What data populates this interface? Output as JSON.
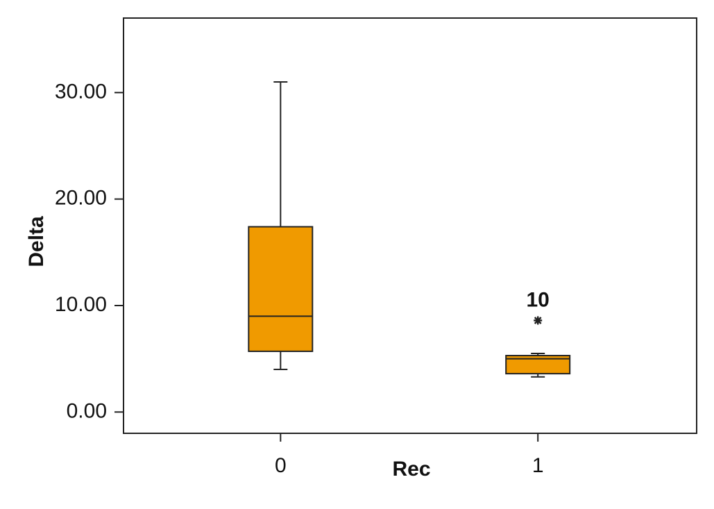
{
  "chart_data": {
    "type": "box",
    "x_label": "Rec",
    "y_label": "Delta",
    "categories": [
      "0",
      "1"
    ],
    "color": "#f09a00",
    "boxes": [
      {
        "whisker_low": 4.0,
        "q1": 5.7,
        "median": 9.0,
        "q3": 17.4,
        "whisker_high": 31.0,
        "outliers": []
      },
      {
        "whisker_low": 3.3,
        "q1": 3.6,
        "median": 5.0,
        "q3": 5.3,
        "whisker_high": 5.5,
        "outliers": [
          {
            "value": 8.6,
            "label": "10"
          }
        ]
      }
    ],
    "ylim": [
      -2,
      37
    ],
    "yticks": [
      {
        "value": 0,
        "label": "0.00"
      },
      {
        "value": 10,
        "label": "10.00"
      },
      {
        "value": 20,
        "label": "20.00"
      },
      {
        "value": 30,
        "label": "30.00"
      }
    ]
  }
}
